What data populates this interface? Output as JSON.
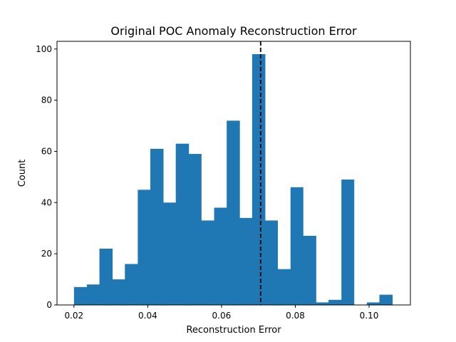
{
  "chart_data": {
    "type": "bar",
    "title": "Original POC Anomaly Reconstruction Error",
    "xlabel": "Reconstruction Error",
    "ylabel": "Count",
    "xlim": [
      0.0154,
      0.1112
    ],
    "ylim": [
      0,
      103
    ],
    "xticks": [
      0.02,
      0.04,
      0.06,
      0.08,
      0.1
    ],
    "xtick_labels": [
      "0.02",
      "0.04",
      "0.06",
      "0.08",
      "0.10"
    ],
    "yticks": [
      0,
      20,
      40,
      60,
      80,
      100
    ],
    "ytick_labels": [
      "0",
      "20",
      "40",
      "60",
      "80",
      "100"
    ],
    "bin_edges": [
      0.02,
      0.0235,
      0.0269,
      0.0304,
      0.0338,
      0.0373,
      0.0407,
      0.0442,
      0.0476,
      0.0511,
      0.0545,
      0.058,
      0.0614,
      0.0649,
      0.0683,
      0.0718,
      0.0752,
      0.0787,
      0.0821,
      0.0856,
      0.089,
      0.0925,
      0.0959,
      0.0994,
      0.1028,
      0.1063
    ],
    "values": [
      7,
      8,
      22,
      10,
      16,
      45,
      61,
      40,
      63,
      59,
      33,
      38,
      72,
      34,
      98,
      33,
      14,
      46,
      27,
      1,
      2,
      49,
      0,
      1,
      4
    ],
    "bar_color": "#1f77b4",
    "threshold_line": {
      "x": 0.0706,
      "style": "dashed",
      "color": "#000000"
    },
    "grid": false,
    "legend": "none"
  }
}
